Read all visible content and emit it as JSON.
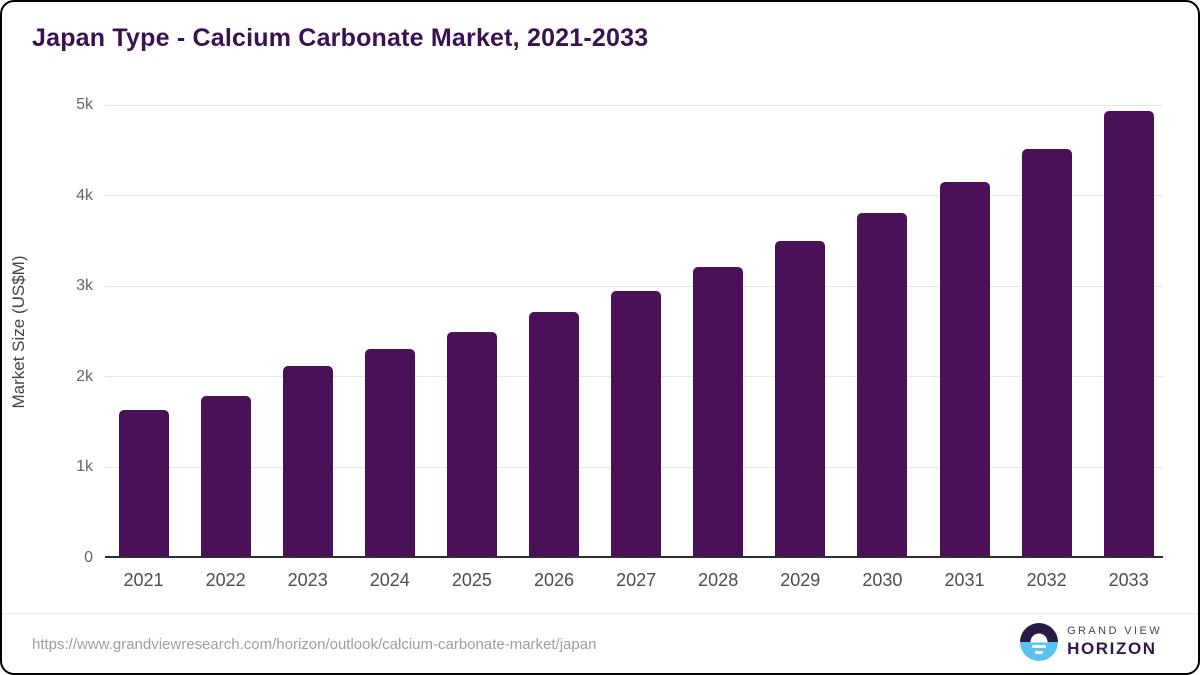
{
  "title": "Japan Type - Calcium Carbonate Market, 2021-2033",
  "chart_data": {
    "type": "bar",
    "title": "Japan Type - Calcium Carbonate Market, 2021-2033",
    "categories": [
      "2021",
      "2022",
      "2023",
      "2024",
      "2025",
      "2026",
      "2027",
      "2028",
      "2029",
      "2030",
      "2031",
      "2032",
      "2033"
    ],
    "values": [
      1630,
      1790,
      2120,
      2310,
      2500,
      2720,
      2950,
      3210,
      3500,
      3810,
      4150,
      4520,
      4930
    ],
    "xlabel": "",
    "ylabel": "Market Size (US$M)",
    "ylim": [
      0,
      5000
    ],
    "ytick_values": [
      0,
      1000,
      2000,
      3000,
      4000,
      5000
    ],
    "ytick_labels": [
      "0",
      "1k",
      "2k",
      "3k",
      "4k",
      "5k"
    ],
    "grid": true,
    "legend": "none",
    "bar_color": "#4a1158"
  },
  "footer": {
    "source_url": "https://www.grandviewresearch.com/horizon/outlook/calcium-carbonate-market/japan",
    "logo": {
      "line1": "GRAND VIEW",
      "line2": "HORIZON"
    }
  },
  "colors": {
    "bar": "#4a1158",
    "title": "#3a1153",
    "gridline": "#e7e7e7",
    "axis_line": "#2f2f2f",
    "tick_label": "#666666",
    "logo_dark": "#2b1a43",
    "logo_blue": "#59c2ef"
  }
}
